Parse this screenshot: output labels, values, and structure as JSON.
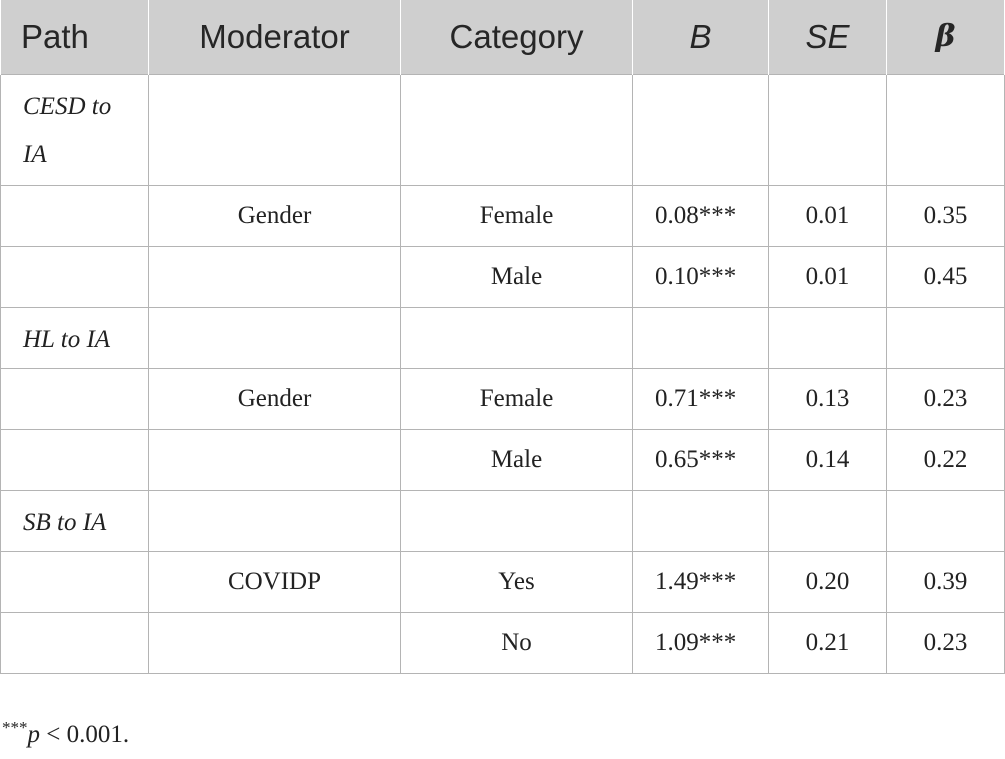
{
  "header": {
    "path": "Path",
    "moderator": "Moderator",
    "category": "Category",
    "b": "B",
    "se": "SE",
    "beta": "β"
  },
  "rows": [
    {
      "path": "CESD to IA",
      "moderator": "",
      "category": "",
      "b": "",
      "se": "",
      "beta": ""
    },
    {
      "path": "",
      "moderator": "Gender",
      "category": "Female",
      "b": "0.08***",
      "se": "0.01",
      "beta": "0.35"
    },
    {
      "path": "",
      "moderator": "",
      "category": "Male",
      "b": "0.10***",
      "se": "0.01",
      "beta": "0.45"
    },
    {
      "path": "HL to IA",
      "moderator": "",
      "category": "",
      "b": "",
      "se": "",
      "beta": ""
    },
    {
      "path": "",
      "moderator": "Gender",
      "category": "Female",
      "b": "0.71***",
      "se": "0.13",
      "beta": "0.23"
    },
    {
      "path": "",
      "moderator": "",
      "category": "Male",
      "b": "0.65***",
      "se": "0.14",
      "beta": "0.22"
    },
    {
      "path": "SB to IA",
      "moderator": "",
      "category": "",
      "b": "",
      "se": "",
      "beta": ""
    },
    {
      "path": "",
      "moderator": "COVIDP",
      "category": "Yes",
      "b": "1.49***",
      "se": "0.20",
      "beta": "0.39"
    },
    {
      "path": "",
      "moderator": "",
      "category": "No",
      "b": "1.09***",
      "se": "0.21",
      "beta": "0.23"
    }
  ],
  "footnote": {
    "stars": "***",
    "p": "p",
    "rest": " < 0.001."
  }
}
